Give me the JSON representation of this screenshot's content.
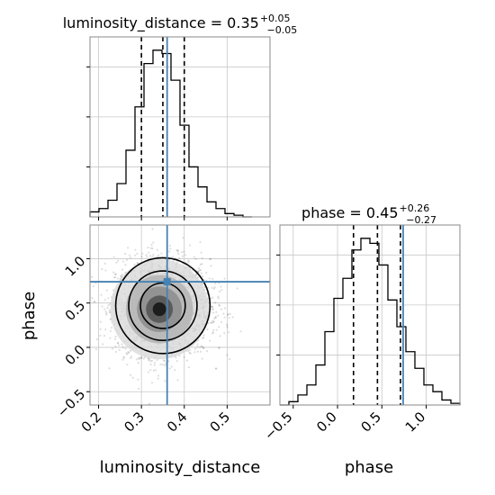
{
  "chart_data": [
    {
      "type": "histogram",
      "title": {
        "main": "luminosity_distance = 0.35",
        "sup": "+0.05",
        "sub": "−0.05"
      },
      "xlim": [
        0.18,
        0.6
      ],
      "bins_left": [
        0.18,
        0.201,
        0.222,
        0.243,
        0.264,
        0.285,
        0.306,
        0.327,
        0.348,
        0.369,
        0.39,
        0.411,
        0.432,
        0.453,
        0.474,
        0.495,
        0.516,
        0.537
      ],
      "bin_width": 0.021,
      "counts": [
        0.03,
        0.05,
        0.1,
        0.2,
        0.4,
        0.66,
        0.92,
        1.0,
        0.98,
        0.82,
        0.55,
        0.3,
        0.18,
        0.09,
        0.05,
        0.02,
        0.01,
        0.0
      ],
      "quantile_lines": [
        0.3,
        0.35,
        0.4
      ],
      "truth": 0.36,
      "xlabel": "",
      "grid": true
    },
    {
      "type": "histogram",
      "title": {
        "main": "phase = 0.45",
        "sup": "+0.26",
        "sub": "−0.27"
      },
      "xlim": [
        -0.65,
        1.38
      ],
      "bins_left": [
        -0.65,
        -0.5485,
        -0.447,
        -0.3455,
        -0.244,
        -0.1425,
        -0.041,
        0.0605,
        0.162,
        0.2635,
        0.365,
        0.4665,
        0.568,
        0.6695,
        0.771,
        0.8725,
        0.974,
        1.0755,
        1.177,
        1.2785
      ],
      "bin_width": 0.1015,
      "counts": [
        0.0,
        0.02,
        0.06,
        0.12,
        0.24,
        0.44,
        0.64,
        0.76,
        0.93,
        1.0,
        0.97,
        0.84,
        0.63,
        0.47,
        0.32,
        0.22,
        0.12,
        0.08,
        0.03,
        0.01
      ],
      "quantile_lines": [
        0.18,
        0.45,
        0.71
      ],
      "truth": 0.74,
      "xlabel": "phase",
      "xticks": [
        "−0.5",
        "0.0",
        "0.5",
        "1.0"
      ],
      "xtick_values": [
        -0.5,
        0.0,
        0.5,
        1.0
      ],
      "grid": true
    },
    {
      "type": "scatter",
      "xlim": [
        0.18,
        0.6
      ],
      "ylim": [
        -0.65,
        1.38
      ],
      "xlabel": "luminosity_distance",
      "ylabel": "phase",
      "xticks": [
        "0.2",
        "0.3",
        "0.4",
        "0.5"
      ],
      "xtick_values": [
        0.2,
        0.3,
        0.4,
        0.5
      ],
      "yticks": [
        "−0.5",
        "0.0",
        "0.5",
        "1.0"
      ],
      "ytick_values": [
        -0.5,
        0.0,
        0.5,
        1.0
      ],
      "center": [
        0.35,
        0.45
      ],
      "std": [
        0.055,
        0.27
      ],
      "truth": [
        0.36,
        0.74
      ],
      "truth_color": "#4682b4",
      "grid": true
    }
  ]
}
